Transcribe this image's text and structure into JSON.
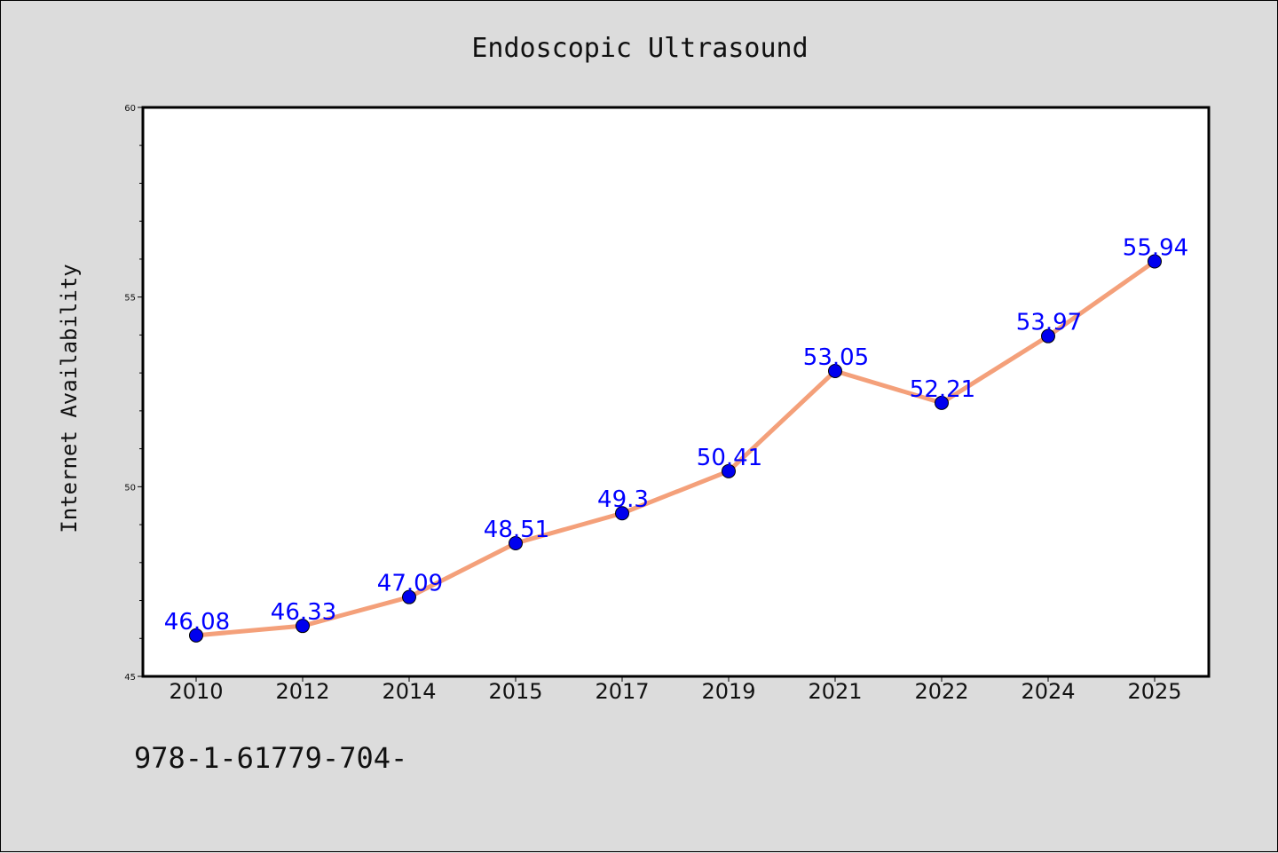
{
  "chart_data": {
    "type": "line",
    "title": "Endoscopic Ultrasound",
    "xlabel": "",
    "ylabel": "Internet Availability",
    "categories": [
      "2010",
      "2012",
      "2014",
      "2015",
      "2017",
      "2019",
      "2021",
      "2022",
      "2024",
      "2025"
    ],
    "values": [
      46.08,
      46.33,
      47.09,
      48.51,
      49.3,
      50.41,
      53.05,
      52.21,
      53.97,
      55.94
    ],
    "data_labels": [
      "46.08",
      "46.33",
      "47.09",
      "48.51",
      "49.3",
      "50.41",
      "53.05",
      "52.21",
      "53.97",
      "55.94"
    ],
    "ylim": [
      45,
      60
    ],
    "yticks": [
      45,
      50,
      55,
      60
    ],
    "grid": false,
    "legend": "none",
    "colors": {
      "line": "#f4a07a",
      "marker": "#0000ee",
      "label": "#0000ff",
      "background": "#dcdcdc",
      "plot_background": "#ffffff"
    }
  },
  "footer": {
    "text": "978-1-61779-704-"
  }
}
